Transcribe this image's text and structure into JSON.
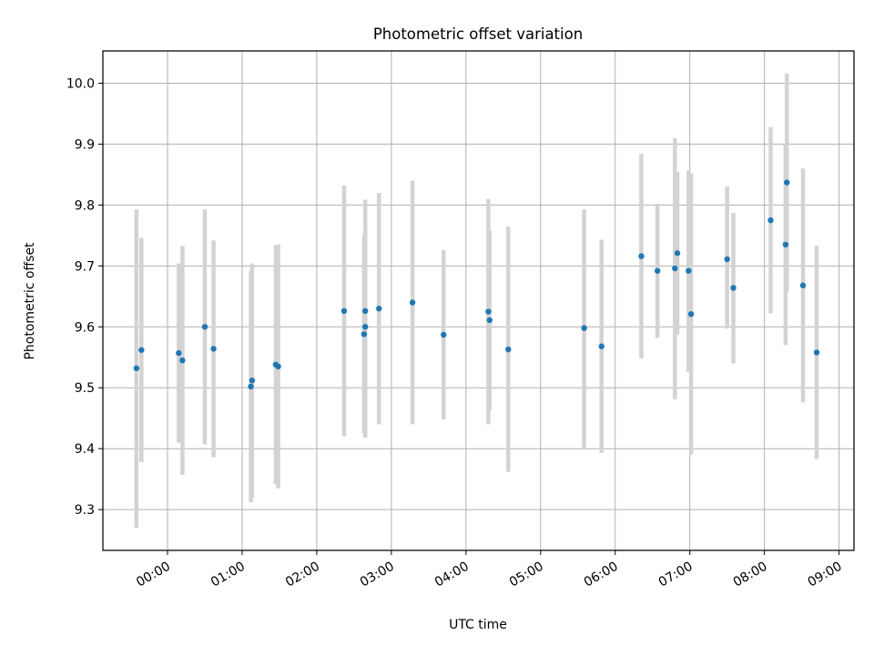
{
  "chart_data": {
    "type": "scatter",
    "title": "Photometric offset variation",
    "xlabel": "UTC time",
    "ylabel": "Photometric offset",
    "grid": true,
    "x_ticks": [
      "00:00",
      "01:00",
      "02:00",
      "03:00",
      "04:00",
      "05:00",
      "06:00",
      "07:00",
      "08:00",
      "09:00"
    ],
    "y_ticks": [
      "9.3",
      "9.4",
      "9.5",
      "9.6",
      "9.7",
      "9.8",
      "9.9",
      "10.0"
    ],
    "xlim": [
      "23:08",
      "09:12"
    ],
    "ylim": [
      9.233,
      10.053
    ],
    "colors": {
      "marker": "#1f77b4",
      "errorbar": "#d3d3d3",
      "grid": "#b0b0b0"
    },
    "points": [
      {
        "t": "23:35",
        "y": 9.532,
        "ylo": 9.27,
        "yhi": 9.793
      },
      {
        "t": "23:39",
        "y": 9.562,
        "ylo": 9.378,
        "yhi": 9.746
      },
      {
        "t": "00:09",
        "y": 9.557,
        "ylo": 9.41,
        "yhi": 9.704
      },
      {
        "t": "00:12",
        "y": 9.545,
        "ylo": 9.357,
        "yhi": 9.733
      },
      {
        "t": "00:30",
        "y": 9.6,
        "ylo": 9.407,
        "yhi": 9.793
      },
      {
        "t": "00:37",
        "y": 9.564,
        "ylo": 9.386,
        "yhi": 9.742
      },
      {
        "t": "01:07",
        "y": 9.502,
        "ylo": 9.312,
        "yhi": 9.692
      },
      {
        "t": "01:08",
        "y": 9.512,
        "ylo": 9.32,
        "yhi": 9.704
      },
      {
        "t": "01:27",
        "y": 9.538,
        "ylo": 9.342,
        "yhi": 9.734
      },
      {
        "t": "01:29",
        "y": 9.535,
        "ylo": 9.335,
        "yhi": 9.735
      },
      {
        "t": "02:22",
        "y": 9.626,
        "ylo": 9.42,
        "yhi": 9.832
      },
      {
        "t": "02:38",
        "y": 9.588,
        "ylo": 9.425,
        "yhi": 9.751
      },
      {
        "t": "02:39",
        "y": 9.626,
        "ylo": 9.418,
        "yhi": 9.809
      },
      {
        "t": "02:39",
        "y": 9.6,
        "ylo": 9.43,
        "yhi": 9.77
      },
      {
        "t": "02:50",
        "y": 9.63,
        "ylo": 9.44,
        "yhi": 9.82
      },
      {
        "t": "03:17",
        "y": 9.64,
        "ylo": 9.44,
        "yhi": 9.84
      },
      {
        "t": "03:42",
        "y": 9.587,
        "ylo": 9.448,
        "yhi": 9.726
      },
      {
        "t": "04:18",
        "y": 9.625,
        "ylo": 9.44,
        "yhi": 9.81
      },
      {
        "t": "04:19",
        "y": 9.611,
        "ylo": 9.464,
        "yhi": 9.758
      },
      {
        "t": "04:34",
        "y": 9.563,
        "ylo": 9.362,
        "yhi": 9.765
      },
      {
        "t": "05:35",
        "y": 9.598,
        "ylo": 9.398,
        "yhi": 9.793
      },
      {
        "t": "05:49",
        "y": 9.568,
        "ylo": 9.393,
        "yhi": 9.743
      },
      {
        "t": "06:21",
        "y": 9.716,
        "ylo": 9.548,
        "yhi": 9.884
      },
      {
        "t": "06:34",
        "y": 9.692,
        "ylo": 9.582,
        "yhi": 9.802
      },
      {
        "t": "06:48",
        "y": 9.696,
        "ylo": 9.481,
        "yhi": 9.91
      },
      {
        "t": "06:50",
        "y": 9.721,
        "ylo": 9.587,
        "yhi": 9.855
      },
      {
        "t": "06:59",
        "y": 9.692,
        "ylo": 9.526,
        "yhi": 9.857
      },
      {
        "t": "07:01",
        "y": 9.621,
        "ylo": 9.39,
        "yhi": 9.852
      },
      {
        "t": "07:30",
        "y": 9.711,
        "ylo": 9.597,
        "yhi": 9.83
      },
      {
        "t": "07:35",
        "y": 9.664,
        "ylo": 9.54,
        "yhi": 9.787
      },
      {
        "t": "08:05",
        "y": 9.775,
        "ylo": 9.622,
        "yhi": 9.928
      },
      {
        "t": "08:17",
        "y": 9.735,
        "ylo": 9.57,
        "yhi": 9.9
      },
      {
        "t": "08:18",
        "y": 9.837,
        "ylo": 9.658,
        "yhi": 10.016
      },
      {
        "t": "08:31",
        "y": 9.668,
        "ylo": 9.476,
        "yhi": 9.86
      },
      {
        "t": "08:42",
        "y": 9.558,
        "ylo": 9.383,
        "yhi": 9.733
      }
    ]
  }
}
